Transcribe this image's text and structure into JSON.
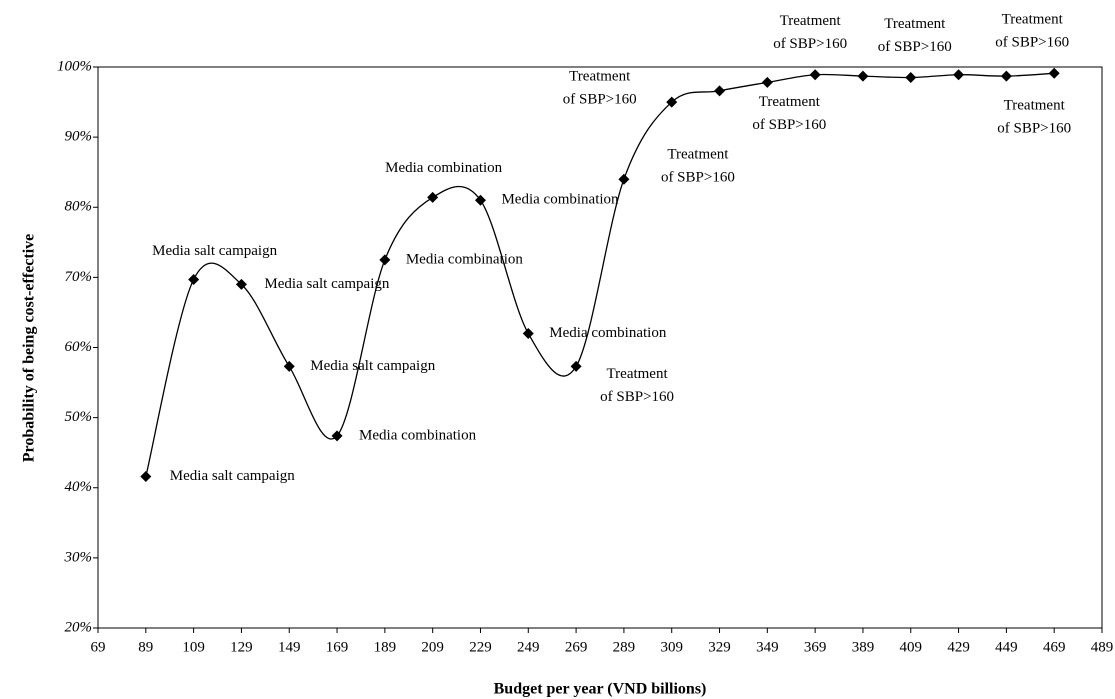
{
  "chart_data": {
    "type": "line",
    "x_label": "Budget per year (VND billions)",
    "y_label": "Probability of being cost-effective",
    "x": [
      89,
      109,
      129,
      149,
      169,
      189,
      209,
      229,
      249,
      269,
      289,
      309,
      329,
      349,
      369,
      389,
      409,
      429,
      449,
      469
    ],
    "values": [
      41.6,
      69.7,
      69.0,
      57.3,
      47.4,
      72.5,
      81.4,
      81.0,
      62.0,
      57.3,
      84.0,
      95.0,
      96.6,
      97.8,
      98.9,
      98.7,
      98.5,
      98.9,
      98.7,
      99.1
    ],
    "color": "#000000",
    "xlim": [
      69,
      489
    ],
    "xticks": [
      69,
      89,
      109,
      129,
      149,
      169,
      189,
      209,
      229,
      249,
      269,
      289,
      309,
      329,
      349,
      369,
      389,
      409,
      429,
      449,
      469,
      489
    ],
    "ylim": [
      20,
      100
    ],
    "yticks": [
      {
        "value": 20,
        "label": "20%"
      },
      {
        "value": 30,
        "label": "30%"
      },
      {
        "value": 40,
        "label": "40%"
      },
      {
        "value": 50,
        "label": "50%"
      },
      {
        "value": 60,
        "label": "60%"
      },
      {
        "value": 70,
        "label": "70%"
      },
      {
        "value": 80,
        "label": "80%"
      },
      {
        "value": 90,
        "label": "90%"
      },
      {
        "value": 100,
        "label": "100%"
      }
    ],
    "annotations": [
      {
        "x": 89,
        "text": [
          "Media salt campaign"
        ]
      },
      {
        "x": 109,
        "text": [
          "Media salt campaign"
        ]
      },
      {
        "x": 129,
        "text": [
          "Media salt campaign"
        ]
      },
      {
        "x": 149,
        "text": [
          "Media salt campaign"
        ]
      },
      {
        "x": 169,
        "text": [
          "Media combination"
        ]
      },
      {
        "x": 189,
        "text": [
          "Media combination"
        ]
      },
      {
        "x": 209,
        "text": [
          "Media combination"
        ]
      },
      {
        "x": 229,
        "text": [
          "Media combination"
        ]
      },
      {
        "x": 249,
        "text": [
          "Media combination"
        ]
      },
      {
        "x": 269,
        "text": [
          "Treatment",
          "of SBP>160"
        ]
      },
      {
        "x": 289,
        "text": [
          "Treatment",
          "of SBP>160"
        ]
      },
      {
        "x": 309,
        "text": [
          "Treatment",
          "of SBP>160"
        ]
      },
      {
        "x": 349,
        "text": [
          "Treatment",
          "of SBP>160"
        ]
      },
      {
        "x": 369,
        "text": [
          "Treatment",
          "of SBP>160"
        ]
      },
      {
        "x": 409,
        "text": [
          "Treatment",
          "of SBP>160"
        ]
      },
      {
        "x": 469,
        "text": [
          "Treatment",
          "of SBP>160"
        ]
      },
      {
        "x": 469,
        "text": [
          "Treatment",
          "of SBP>160"
        ]
      }
    ]
  }
}
